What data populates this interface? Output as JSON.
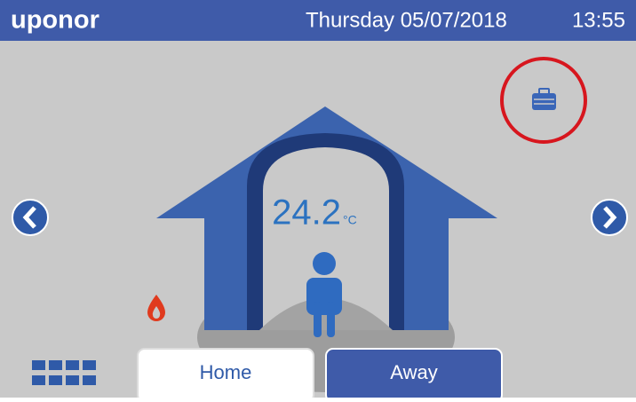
{
  "header": {
    "brand": "uponor",
    "date": "Thursday 05/07/2018",
    "time": "13:55"
  },
  "room": {
    "temperature": "24.2",
    "unit": "°C"
  },
  "buttons": [
    "Home",
    "Away"
  ]
}
